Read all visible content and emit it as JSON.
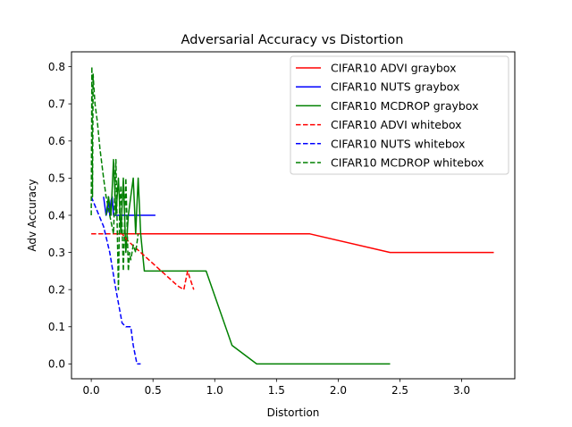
{
  "chart_data": {
    "type": "line",
    "title": "Adversarial Accuracy vs Distortion",
    "xlabel": "Distortion",
    "ylabel": "Adv Accuracy",
    "xlim": [
      -0.16,
      3.43
    ],
    "ylim": [
      -0.04,
      0.84
    ],
    "xticks": [
      "0.0",
      "0.5",
      "1.0",
      "1.5",
      "2.0",
      "2.5",
      "3.0"
    ],
    "yticks": [
      "0.0",
      "0.1",
      "0.2",
      "0.3",
      "0.4",
      "0.5",
      "0.6",
      "0.7",
      "0.8"
    ],
    "grid": false,
    "legend_position": "top-right",
    "series": [
      {
        "name": "CIFAR10 ADVI graybox",
        "color": "#ff0000",
        "style": "solid",
        "x": [
          0.18,
          0.21,
          0.24,
          0.5,
          1.0,
          1.5,
          1.77,
          2.42,
          3.26
        ],
        "y": [
          0.35,
          0.35,
          0.35,
          0.35,
          0.35,
          0.35,
          0.35,
          0.3,
          0.3
        ]
      },
      {
        "name": "CIFAR10 NUTS graybox",
        "color": "#0000ff",
        "style": "solid",
        "x": [
          0.1,
          0.12,
          0.13,
          0.14,
          0.15,
          0.16,
          0.17,
          0.18,
          0.2,
          0.25,
          0.3,
          0.4,
          0.52
        ],
        "y": [
          0.45,
          0.4,
          0.41,
          0.45,
          0.4,
          0.44,
          0.45,
          0.4,
          0.4,
          0.4,
          0.4,
          0.4,
          0.4
        ]
      },
      {
        "name": "CIFAR10 MCDROP graybox",
        "color": "#008000",
        "style": "solid",
        "x": [
          0.12,
          0.14,
          0.16,
          0.18,
          0.2,
          0.22,
          0.24,
          0.26,
          0.28,
          0.3,
          0.32,
          0.34,
          0.36,
          0.38,
          0.4,
          0.43,
          0.6,
          0.8,
          0.93,
          1.14,
          1.34,
          1.8,
          2.42
        ],
        "y": [
          0.4,
          0.45,
          0.4,
          0.55,
          0.4,
          0.5,
          0.35,
          0.5,
          0.3,
          0.4,
          0.45,
          0.5,
          0.35,
          0.5,
          0.35,
          0.25,
          0.25,
          0.25,
          0.25,
          0.05,
          0.0,
          0.0,
          0.0
        ]
      },
      {
        "name": "CIFAR10 ADVI whitebox",
        "color": "#ff0000",
        "style": "dashed",
        "x": [
          0.0,
          0.05,
          0.1,
          0.15,
          0.2,
          0.25,
          0.3,
          0.4,
          0.5,
          0.6,
          0.7,
          0.75,
          0.78,
          0.8,
          0.83
        ],
        "y": [
          0.35,
          0.35,
          0.35,
          0.35,
          0.35,
          0.35,
          0.33,
          0.3,
          0.27,
          0.24,
          0.21,
          0.2,
          0.25,
          0.23,
          0.2
        ]
      },
      {
        "name": "CIFAR10 NUTS whitebox",
        "color": "#0000ff",
        "style": "dashed",
        "x": [
          0.0,
          0.05,
          0.1,
          0.15,
          0.2,
          0.25,
          0.28,
          0.32,
          0.34,
          0.37,
          0.4
        ],
        "y": [
          0.45,
          0.41,
          0.37,
          0.3,
          0.2,
          0.11,
          0.1,
          0.1,
          0.05,
          0.0,
          0.0
        ]
      },
      {
        "name": "CIFAR10 MCDROP whitebox",
        "color": "#008000",
        "style": "dashed",
        "x": [
          0.0,
          0.005,
          0.01,
          0.015,
          0.02,
          0.03,
          0.05,
          0.07,
          0.1,
          0.12,
          0.15,
          0.18,
          0.2,
          0.22,
          0.23,
          0.24,
          0.26,
          0.28,
          0.3,
          0.31,
          0.32,
          0.34,
          0.36,
          0.38
        ],
        "y": [
          0.4,
          0.8,
          0.45,
          0.78,
          0.75,
          0.7,
          0.65,
          0.58,
          0.5,
          0.45,
          0.4,
          0.35,
          0.55,
          0.2,
          0.42,
          0.48,
          0.25,
          0.5,
          0.25,
          0.3,
          0.28,
          0.32,
          0.3,
          0.35
        ]
      }
    ]
  }
}
